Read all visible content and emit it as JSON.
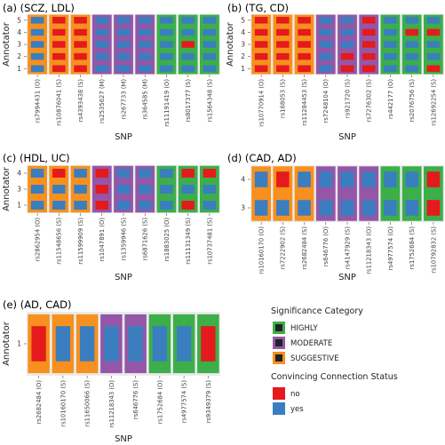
{
  "colors": {
    "panel_bg": "#ebebeb",
    "HIGHLY": "#3cae4a",
    "MODERATE": "#9457a8",
    "SUGGESTIVE": "#f7901e",
    "no": "#e41a1c",
    "yes": "#3a7ebf",
    "legend_border": "#222222"
  },
  "legend": {
    "significance_title": "Significance Category",
    "significance_items": [
      {
        "key": "HIGHLY",
        "label": "HIGHLY"
      },
      {
        "key": "MODERATE",
        "label": "MODERATE"
      },
      {
        "key": "SUGGESTIVE",
        "label": "SUGGESTIVE"
      }
    ],
    "connection_title": "Convincing Connection Status",
    "connection_items": [
      {
        "key": "no",
        "label": "no"
      },
      {
        "key": "yes",
        "label": "yes"
      }
    ]
  },
  "chart_data": [
    {
      "type": "heatmap",
      "panel_label": "(a) (SCZ, LDL)",
      "xlabel": "SNP",
      "ylabel": "Annotator",
      "annotators": [
        "1",
        "2",
        "3",
        "4",
        "5"
      ],
      "snps": [
        "rs7994431 (O)",
        "rs10876041 (S)",
        "rs4393438 (S)",
        "rs2535627 (M)",
        "rs267733 (M)",
        "rs364585 (M)",
        "rs11191419 (O)",
        "rs8017377 (S)",
        "rs1564348 (S)"
      ],
      "categories": [
        "SUGGESTIVE",
        "SUGGESTIVE",
        "SUGGESTIVE",
        "MODERATE",
        "MODERATE",
        "MODERATE",
        "HIGHLY",
        "HIGHLY",
        "HIGHLY"
      ],
      "cells": [
        [
          "yes",
          "no",
          "no",
          "yes",
          "yes",
          "yes",
          "yes",
          "yes",
          "yes"
        ],
        [
          "yes",
          "no",
          "no",
          "yes",
          "yes",
          "yes",
          "yes",
          "yes",
          "yes"
        ],
        [
          "yes",
          "no",
          "no",
          "yes",
          "yes",
          "yes",
          "yes",
          "no",
          "yes"
        ],
        [
          "yes",
          "no",
          "no",
          "yes",
          "yes",
          "yes",
          "yes",
          "yes",
          "yes"
        ],
        [
          "yes",
          "no",
          "no",
          "yes",
          "yes",
          "yes",
          "yes",
          "yes",
          "yes"
        ]
      ]
    },
    {
      "type": "heatmap",
      "panel_label": "(b) (TG, CD)",
      "xlabel": "SNP",
      "ylabel": "Annotator",
      "annotators": [
        "1",
        "2",
        "3",
        "4",
        "5"
      ],
      "snps": [
        "rs10770914 (O)",
        "rs168053 (S)",
        "rs11284453 (S)",
        "rs7248104 (O)",
        "rs921720 (S)",
        "rs7276302 (S)",
        "rs442177 (O)",
        "rs2076756 (S)",
        "rs12692254 (S)"
      ],
      "categories": [
        "SUGGESTIVE",
        "SUGGESTIVE",
        "SUGGESTIVE",
        "MODERATE",
        "MODERATE",
        "MODERATE",
        "HIGHLY",
        "HIGHLY",
        "HIGHLY"
      ],
      "cells": [
        [
          "no",
          "no",
          "no",
          "yes",
          "no",
          "no",
          "yes",
          "yes",
          "no"
        ],
        [
          "no",
          "no",
          "no",
          "yes",
          "no",
          "no",
          "yes",
          "yes",
          "yes"
        ],
        [
          "no",
          "no",
          "no",
          "yes",
          "yes",
          "no",
          "yes",
          "yes",
          "yes"
        ],
        [
          "no",
          "no",
          "no",
          "yes",
          "yes",
          "no",
          "yes",
          "no",
          "no"
        ],
        [
          "no",
          "no",
          "no",
          "yes",
          "yes",
          "no",
          "yes",
          "yes",
          "yes"
        ]
      ]
    },
    {
      "type": "heatmap",
      "panel_label": "(c) (HDL, UC)",
      "xlabel": "SNP",
      "ylabel": "Annotator",
      "annotators": [
        "1",
        "3",
        "4"
      ],
      "snps": [
        "rs2862954 (O)",
        "rs11548656 (S)",
        "rs11599909 (S)",
        "rs1047891 (O)",
        "rs1359946 (S)",
        "rs6871626 (S)",
        "rs1883025 (O)",
        "rs11131349 (S)",
        "rs10737481 (S)"
      ],
      "categories": [
        "SUGGESTIVE",
        "SUGGESTIVE",
        "SUGGESTIVE",
        "MODERATE",
        "MODERATE",
        "MODERATE",
        "HIGHLY",
        "HIGHLY",
        "HIGHLY"
      ],
      "cells": [
        [
          "yes",
          "yes",
          "yes",
          "no",
          "yes",
          "yes",
          "yes",
          "no",
          "yes"
        ],
        [
          "yes",
          "yes",
          "yes",
          "no",
          "yes",
          "yes",
          "yes",
          "yes",
          "yes"
        ],
        [
          "yes",
          "no",
          "yes",
          "no",
          "yes",
          "yes",
          "yes",
          "no",
          "no"
        ]
      ]
    },
    {
      "type": "heatmap",
      "panel_label": "(d) (CAD, AD)",
      "xlabel": "SNP",
      "ylabel": "",
      "annotators": [
        "3",
        "4"
      ],
      "snps": [
        "rs10160170 (O)",
        "rs7222902 (S)",
        "rs2682484 (S)",
        "rs646776 (O)",
        "rs4147929 (S)",
        "rs11218343 (O)",
        "rs4977574 (O)",
        "rs1752684 (S)",
        "rs10792832 (S)"
      ],
      "categories": [
        "SUGGESTIVE",
        "SUGGESTIVE",
        "SUGGESTIVE",
        "MODERATE",
        "MODERATE",
        "MODERATE",
        "HIGHLY",
        "HIGHLY",
        "HIGHLY"
      ],
      "cells": [
        [
          "yes",
          "yes",
          "yes",
          "yes",
          "yes",
          "yes",
          "yes",
          "yes",
          "no"
        ],
        [
          "yes",
          "no",
          "yes",
          "yes",
          "yes",
          "yes",
          "yes",
          "yes",
          "no"
        ]
      ]
    },
    {
      "type": "heatmap",
      "panel_label": "(e) (AD, CAD)",
      "xlabel": "SNP",
      "ylabel": "Annotator",
      "annotators": [
        "1"
      ],
      "snps": [
        "rs2682484 (O)",
        "rs10160170 (S)",
        "rs11650066 (S)",
        "rs11218343 (O)",
        "rs646776 (S)",
        "rs1752684 (O)",
        "rs4977574 (S)",
        "rs9349379 (S)"
      ],
      "categories": [
        "SUGGESTIVE",
        "SUGGESTIVE",
        "SUGGESTIVE",
        "MODERATE",
        "MODERATE",
        "HIGHLY",
        "HIGHLY",
        "HIGHLY"
      ],
      "cells": [
        [
          "no",
          "yes",
          "yes",
          "yes",
          "yes",
          "yes",
          "yes",
          "no"
        ]
      ]
    }
  ]
}
